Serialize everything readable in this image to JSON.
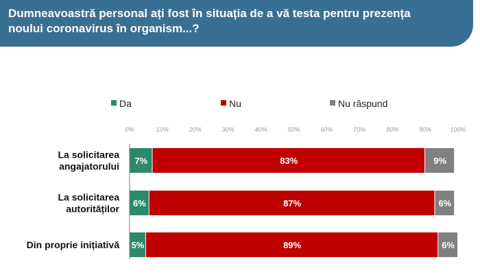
{
  "header": {
    "title": "Dumneavoastră personal ați fost în situația de a vă testa pentru prezența noului coronavirus în organism...?",
    "background_color": "#3a6f94"
  },
  "chart_data": {
    "type": "bar",
    "orientation": "horizontal",
    "stacked": true,
    "categories": [
      [
        "La solicitarea",
        "angajatorului"
      ],
      [
        "La solicitarea",
        "autorităților"
      ],
      [
        "Din proprie inițiativă"
      ]
    ],
    "series": [
      {
        "name": "Da",
        "color": "#2a8a6a",
        "values": [
          7,
          6,
          5
        ],
        "labels": [
          "7%",
          "6%",
          "5%"
        ]
      },
      {
        "name": "Nu",
        "color": "#c00000",
        "values": [
          83,
          87,
          89
        ],
        "labels": [
          "83%",
          "87%",
          "89%"
        ]
      },
      {
        "name": "Nu răspund",
        "color": "#808080",
        "values": [
          9,
          6,
          6
        ],
        "labels": [
          "9%",
          "6%",
          "6%"
        ]
      }
    ],
    "xlim": [
      0,
      100
    ],
    "xticks": [
      "0%",
      "10%",
      "20%",
      "30%",
      "40%",
      "50%",
      "60%",
      "70%",
      "80%",
      "90%",
      "100%"
    ],
    "xaxis_position": "top",
    "grid": false,
    "legend_position": "top"
  }
}
